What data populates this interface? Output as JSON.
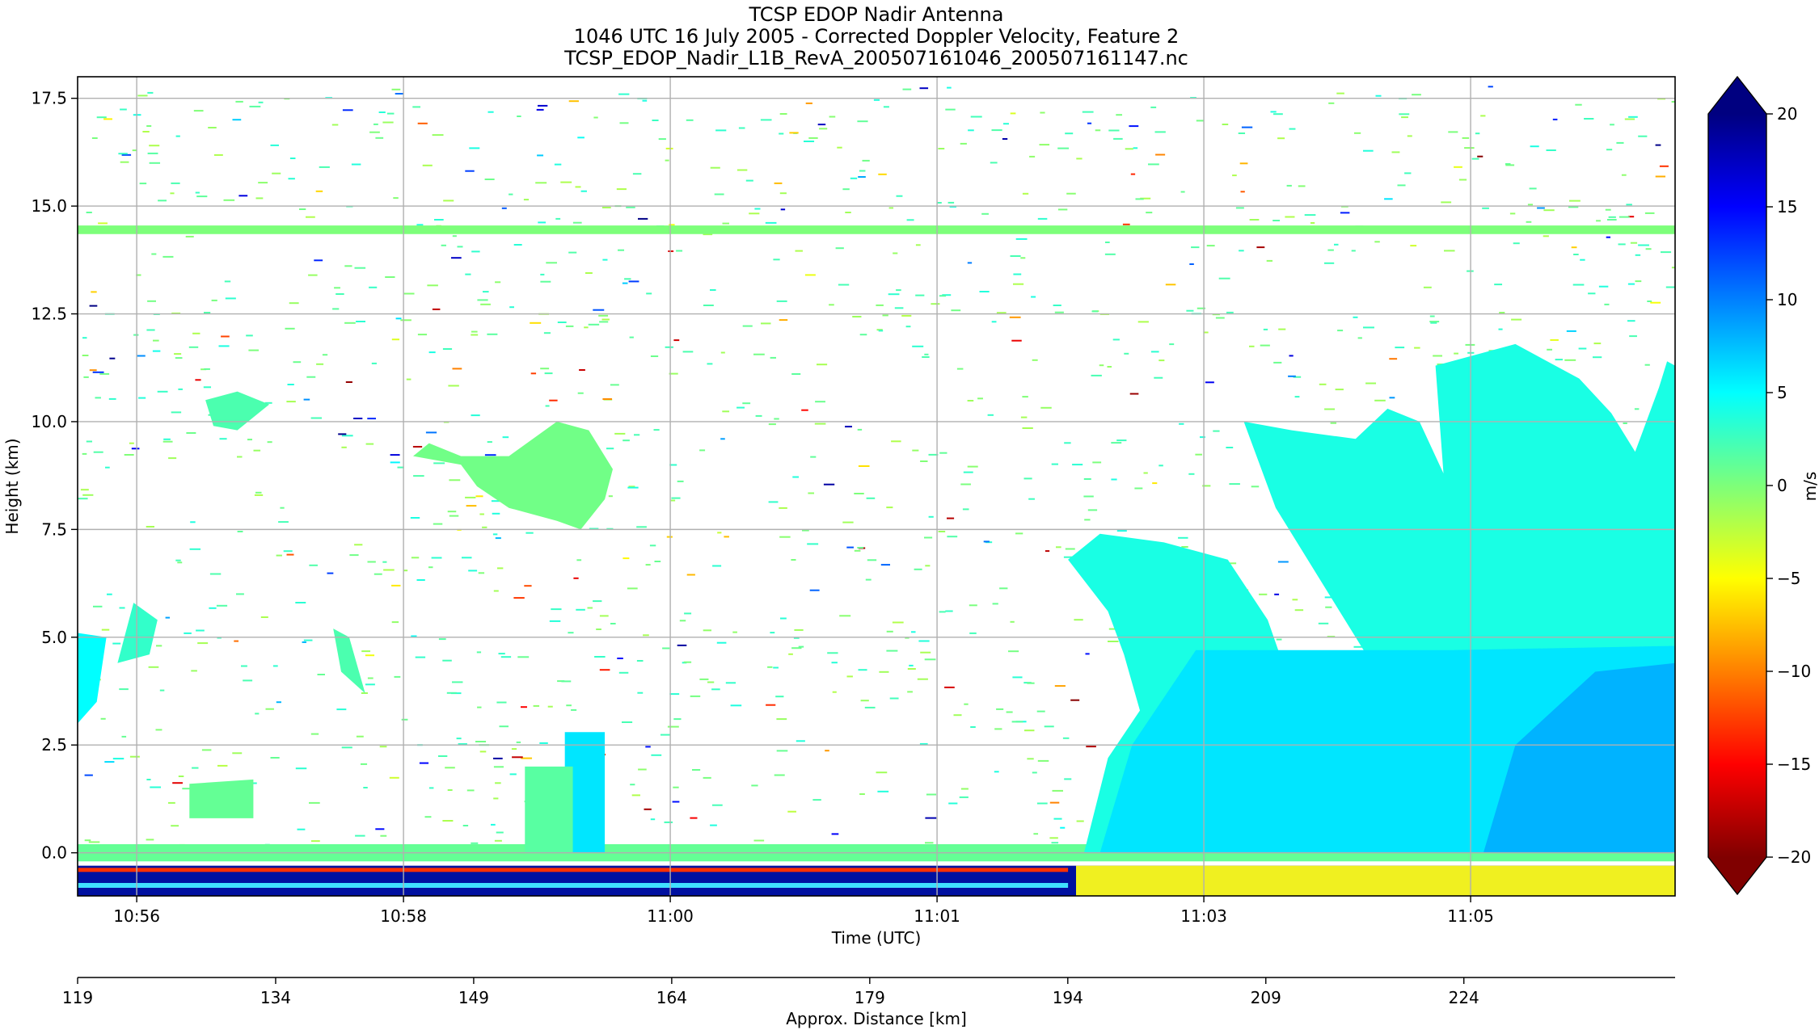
{
  "chart_data": {
    "type": "heatmap",
    "title_lines": [
      "TCSP EDOP Nadir Antenna",
      "1046 UTC 16 July 2005 - Corrected Doppler Velocity, Feature 2",
      "TCSP_EDOP_Nadir_L1B_RevA_200507161046_200507161147.nc"
    ],
    "xlabel": "Time (UTC)",
    "ylabel": "Height (km)",
    "xlabel2": "Approx. Distance [km]",
    "colorbar_label": "m/s",
    "grid": true,
    "x_range_utc": [
      "10:55:00",
      "11:06:59"
    ],
    "ylim": [
      -1.0,
      18.0
    ],
    "x_ticks": [
      {
        "label": "10:56",
        "pos": 0.037
      },
      {
        "label": "10:58",
        "pos": 0.204
      },
      {
        "label": "11:00",
        "pos": 0.371
      },
      {
        "label": "11:01",
        "pos": 0.538
      },
      {
        "label": "11:03",
        "pos": 0.705
      },
      {
        "label": "11:05",
        "pos": 0.872
      }
    ],
    "y_ticks": [
      0.0,
      2.5,
      5.0,
      7.5,
      10.0,
      12.5,
      15.0,
      17.5
    ],
    "y_tick_labels": [
      "0.0",
      "2.5",
      "5.0",
      "7.5",
      "10.0",
      "12.5",
      "15.0",
      "17.5"
    ],
    "distance_range_km": [
      119,
      240
    ],
    "distance_ticks": [
      119,
      134,
      149,
      164,
      179,
      194,
      209,
      224
    ],
    "distance_tick_labels": [
      "119",
      "134",
      "149",
      "164",
      "179",
      "194",
      "209",
      "224"
    ],
    "colorbar_range": [
      -20,
      20
    ],
    "colorbar_ticks": [
      20,
      15,
      10,
      5,
      0,
      -5,
      -10,
      -15,
      -20
    ],
    "colorbar_tick_labels": [
      "20",
      "15",
      "10",
      "5",
      "0",
      "−5",
      "−10",
      "−15",
      "−20"
    ],
    "colormap": [
      "#000080",
      "#0000ff",
      "#0080ff",
      "#00ffff",
      "#7dff7a",
      "#ffff00",
      "#ff8000",
      "#ff0000",
      "#800000"
    ],
    "features": [
      {
        "name": "surface layer",
        "x": [
          0.0,
          1.0
        ],
        "y": [
          -0.2,
          0.2
        ],
        "value": 1.0
      },
      {
        "name": "high cloud layer",
        "x": [
          0.0,
          1.0
        ],
        "y": [
          14.35,
          14.55
        ],
        "value": 0.0
      },
      {
        "name": "convective cell",
        "x": [
          0.305,
          0.33
        ],
        "y": [
          0.0,
          2.8
        ],
        "value": 6.0
      },
      {
        "name": "convective cell",
        "x": [
          0.28,
          0.31
        ],
        "y": [
          0.0,
          2.0
        ],
        "value": 1.5
      },
      {
        "name": "mid-level cloud",
        "x": [
          0.21,
          0.335
        ],
        "y": [
          7.5,
          9.8
        ],
        "value": 0.5
      },
      {
        "name": "precipitation region",
        "x": [
          0.63,
          1.0
        ],
        "y": [
          0.0,
          11.5
        ],
        "value": 4.0
      }
    ]
  }
}
